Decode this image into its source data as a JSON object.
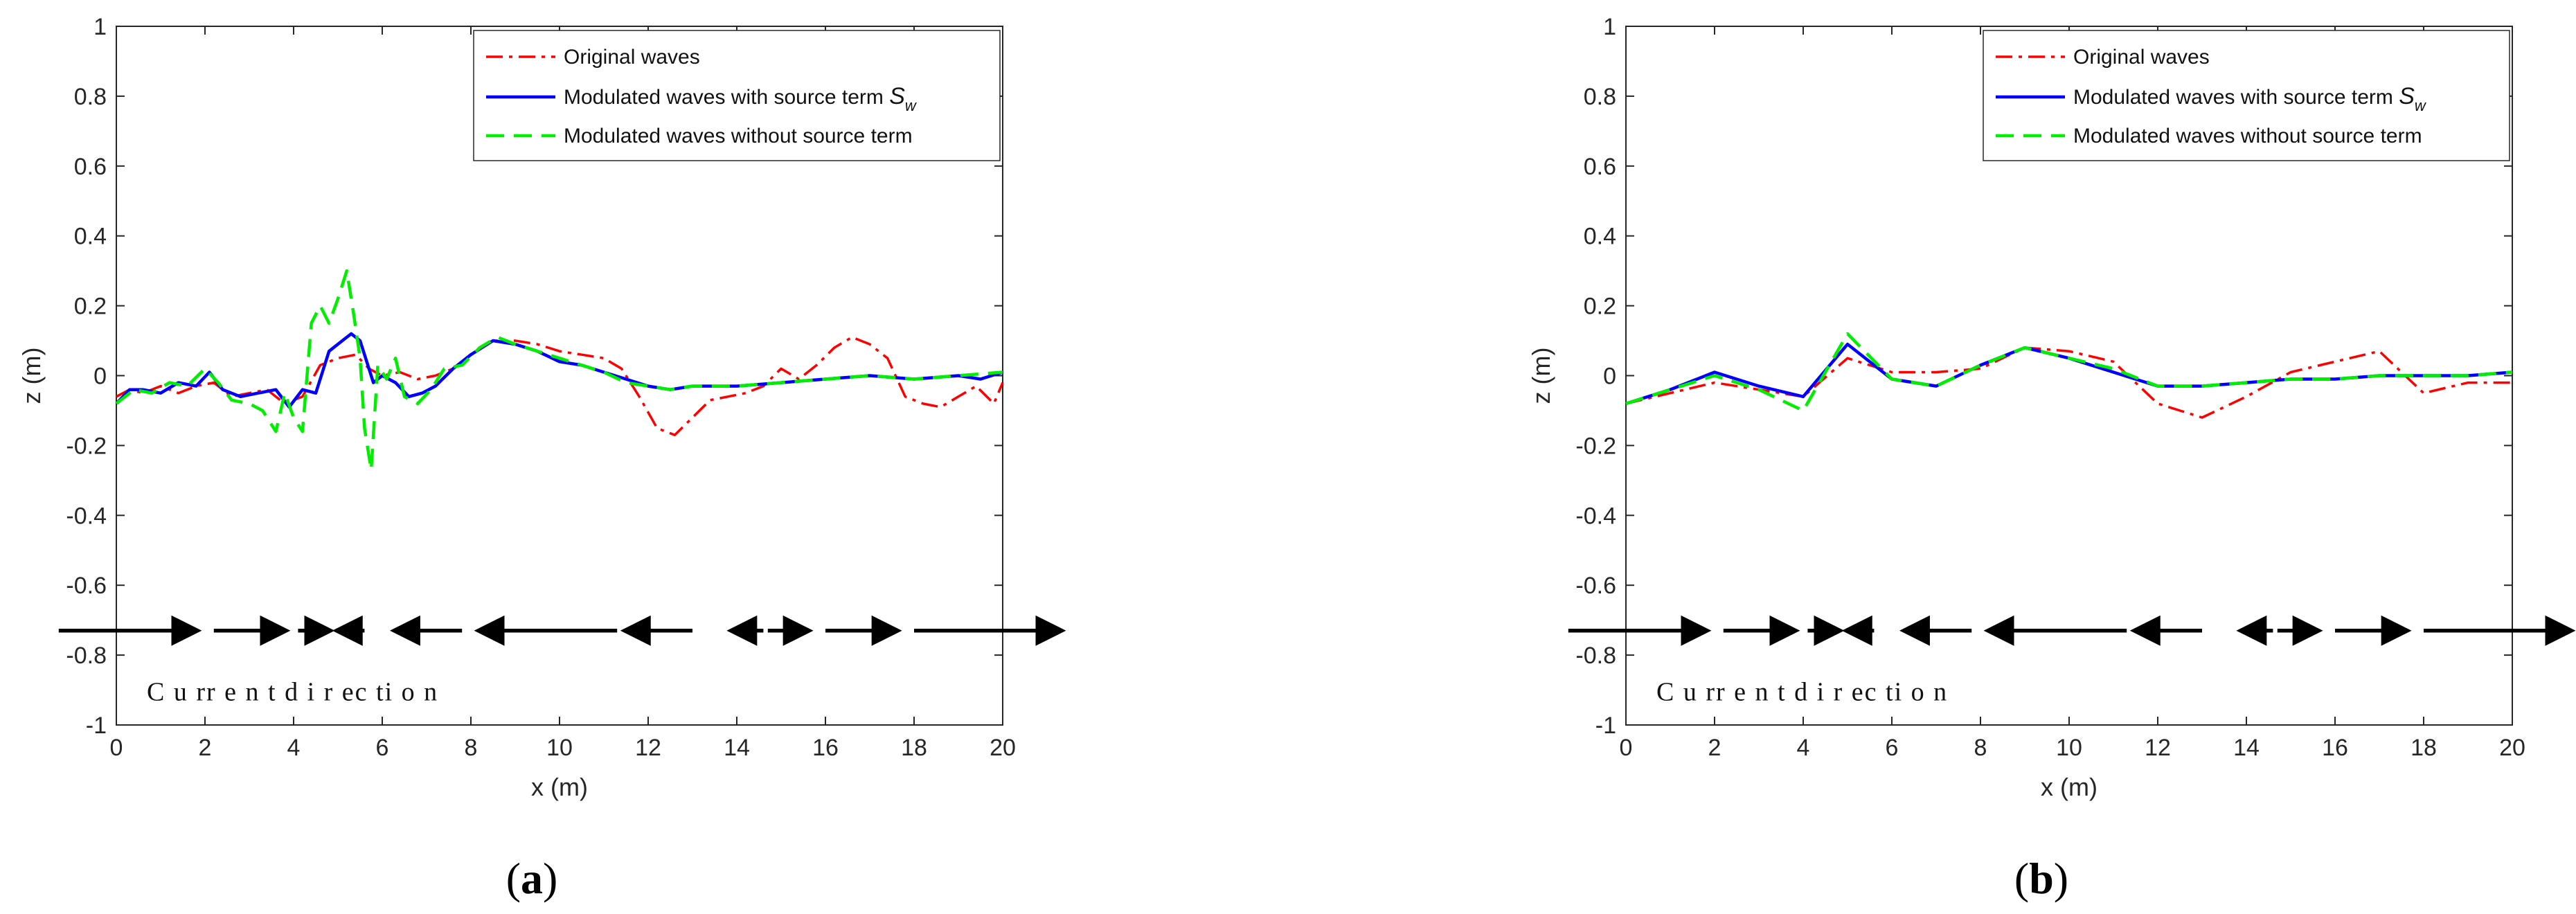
{
  "chart_data": [
    {
      "type": "line",
      "panel_label": "a",
      "xlabel": "x (m)",
      "ylabel": "z (m)",
      "xlim": [
        0,
        20
      ],
      "ylim": [
        -1,
        1
      ],
      "xticks": [
        "0",
        "2",
        "4",
        "6",
        "8",
        "10",
        "12",
        "14",
        "16",
        "18",
        "20"
      ],
      "yticks": [
        "1",
        "0.8",
        "0.6",
        "0.4",
        "0.2",
        "0",
        "-0.2",
        "-0.4",
        "-0.6",
        "-0.8",
        "-1"
      ],
      "grid": false,
      "legend_position": "top-right",
      "legend": {
        "original": "Original waves",
        "with_source_prefix": "Modulated waves with source term ",
        "with_source_symbol": "S",
        "with_source_sub": "w",
        "without_source": "Modulated waves without source term"
      },
      "series": [
        {
          "name": "Original waves",
          "color": "#ff0000",
          "style": "dash-dot",
          "x": [
            0,
            0.3,
            0.6,
            1,
            1.4,
            1.8,
            2.2,
            2.6,
            3,
            3.4,
            3.8,
            4.2,
            4.6,
            5,
            5.4,
            5.7,
            6,
            6.4,
            6.8,
            7.2,
            7.6,
            8,
            8.5,
            9,
            9.5,
            10,
            10.5,
            11,
            11.4,
            11.8,
            12.2,
            12.6,
            13,
            13.4,
            13.8,
            14.2,
            14.6,
            15,
            15.4,
            15.8,
            16.2,
            16.6,
            17,
            17.4,
            17.8,
            18.2,
            18.6,
            19,
            19.4,
            19.8,
            20
          ],
          "y": [
            -0.06,
            -0.04,
            -0.05,
            -0.03,
            -0.05,
            -0.03,
            -0.02,
            -0.06,
            -0.05,
            -0.04,
            -0.08,
            -0.06,
            0.03,
            0.05,
            0.06,
            0.02,
            0.0,
            0.01,
            -0.01,
            0.0,
            0.02,
            0.06,
            0.1,
            0.1,
            0.09,
            0.07,
            0.06,
            0.05,
            0.02,
            -0.06,
            -0.15,
            -0.17,
            -0.12,
            -0.07,
            -0.06,
            -0.05,
            -0.03,
            0.02,
            -0.01,
            0.03,
            0.08,
            0.11,
            0.09,
            0.05,
            -0.06,
            -0.08,
            -0.09,
            -0.06,
            -0.03,
            -0.08,
            -0.02
          ]
        },
        {
          "name": "Modulated waves with source term Sw",
          "color": "#0000ff",
          "style": "solid",
          "x": [
            0,
            0.3,
            0.6,
            1,
            1.4,
            1.8,
            2.1,
            2.4,
            2.8,
            3.2,
            3.6,
            3.9,
            4.2,
            4.5,
            4.8,
            5.1,
            5.3,
            5.5,
            5.8,
            6,
            6.3,
            6.6,
            6.9,
            7.2,
            7.6,
            8,
            8.5,
            9,
            9.5,
            10,
            10.5,
            11,
            11.5,
            12,
            12.5,
            13,
            14,
            15,
            16,
            17,
            18,
            19,
            19.5,
            20
          ],
          "y": [
            -0.08,
            -0.04,
            -0.04,
            -0.05,
            -0.02,
            -0.03,
            0.01,
            -0.04,
            -0.06,
            -0.05,
            -0.04,
            -0.09,
            -0.04,
            -0.05,
            0.07,
            0.1,
            0.12,
            0.1,
            -0.02,
            0.0,
            -0.02,
            -0.06,
            -0.05,
            -0.03,
            0.02,
            0.06,
            0.1,
            0.09,
            0.07,
            0.04,
            0.03,
            0.01,
            -0.01,
            -0.03,
            -0.04,
            -0.03,
            -0.03,
            -0.02,
            -0.01,
            0.0,
            -0.01,
            0.0,
            -0.01,
            0.01
          ]
        },
        {
          "name": "Modulated waves without source term",
          "color": "#00ee00",
          "style": "dashed",
          "x": [
            0,
            0.4,
            0.8,
            1.2,
            1.6,
            2.0,
            2.3,
            2.6,
            3.0,
            3.3,
            3.6,
            3.8,
            4.0,
            4.2,
            4.4,
            4.6,
            4.8,
            5.0,
            5.2,
            5.35,
            5.5,
            5.6,
            5.75,
            5.9,
            6.1,
            6.3,
            6.5,
            6.8,
            7.1,
            7.4,
            7.8,
            8.2,
            8.6,
            9,
            9.5,
            10,
            10.5,
            11,
            11.5,
            12,
            12.5,
            13,
            14,
            15,
            16,
            17,
            18,
            19,
            20
          ],
          "y": [
            -0.08,
            -0.04,
            -0.05,
            -0.02,
            -0.03,
            0.02,
            -0.02,
            -0.07,
            -0.08,
            -0.1,
            -0.16,
            -0.05,
            -0.12,
            -0.16,
            0.15,
            0.2,
            0.15,
            0.22,
            0.3,
            0.18,
            0.05,
            -0.15,
            -0.27,
            0.03,
            -0.01,
            0.05,
            -0.06,
            -0.08,
            -0.04,
            0.02,
            0.03,
            0.08,
            0.11,
            0.09,
            0.07,
            0.05,
            0.03,
            0.01,
            -0.02,
            -0.03,
            -0.04,
            -0.03,
            -0.03,
            -0.02,
            -0.01,
            0.0,
            -0.01,
            0.0,
            0.01
          ]
        }
      ],
      "current_arrows": [
        [
          -1.3,
          1.8
        ],
        [
          2.2,
          3.8
        ],
        [
          4.1,
          4.8
        ],
        [
          5.6,
          5.0
        ],
        [
          7.8,
          6.3
        ],
        [
          11.3,
          8.2
        ],
        [
          13.0,
          11.5
        ],
        [
          14.6,
          13.9
        ],
        [
          14.7,
          15.6
        ],
        [
          16.0,
          17.6
        ],
        [
          18.0,
          21.3
        ]
      ],
      "current_label": "C u rr e n t d i r ec ti o n"
    },
    {
      "type": "line",
      "panel_label": "b",
      "xlabel": "x (m)",
      "ylabel": "z (m)",
      "xlim": [
        0,
        20
      ],
      "ylim": [
        -1,
        1
      ],
      "xticks": [
        "0",
        "2",
        "4",
        "6",
        "8",
        "10",
        "12",
        "14",
        "16",
        "18",
        "20"
      ],
      "yticks": [
        "1",
        "0.8",
        "0.6",
        "0.4",
        "0.2",
        "0",
        "-0.2",
        "-0.4",
        "-0.6",
        "-0.8",
        "-1"
      ],
      "grid": false,
      "legend_position": "top-right",
      "legend": {
        "original": "Original waves",
        "with_source_prefix": "Modulated waves with source term ",
        "with_source_symbol": "S",
        "with_source_sub": "w",
        "without_source": "Modulated waves without source term"
      },
      "series": [
        {
          "name": "Original waves",
          "color": "#ff0000",
          "style": "dash-dot",
          "x": [
            0,
            1,
            2,
            3,
            4,
            5,
            6,
            7,
            8,
            9,
            10,
            11,
            12,
            13,
            14,
            15,
            16,
            17,
            18,
            19,
            20
          ],
          "y": [
            -0.08,
            -0.05,
            -0.02,
            -0.04,
            -0.06,
            0.05,
            0.01,
            0.01,
            0.02,
            0.08,
            0.07,
            0.04,
            -0.08,
            -0.12,
            -0.06,
            0.01,
            0.04,
            0.07,
            -0.05,
            -0.02,
            -0.02
          ]
        },
        {
          "name": "Modulated waves with source term Sw",
          "color": "#0000ff",
          "style": "solid",
          "x": [
            0,
            1,
            2,
            3,
            4,
            5,
            6,
            7,
            8,
            9,
            10,
            11,
            12,
            13,
            14,
            15,
            16,
            17,
            18,
            19,
            20
          ],
          "y": [
            -0.08,
            -0.04,
            0.01,
            -0.03,
            -0.06,
            0.09,
            -0.01,
            -0.03,
            0.03,
            0.08,
            0.05,
            0.01,
            -0.03,
            -0.03,
            -0.02,
            -0.01,
            -0.01,
            0.0,
            0.0,
            0.0,
            0.01
          ]
        },
        {
          "name": "Modulated waves without source term",
          "color": "#00ee00",
          "style": "dashed",
          "x": [
            0,
            1,
            2,
            3,
            4,
            5,
            6,
            7,
            8,
            9,
            10,
            11,
            12,
            13,
            14,
            15,
            16,
            17,
            18,
            19,
            20
          ],
          "y": [
            -0.08,
            -0.04,
            0.0,
            -0.04,
            -0.1,
            0.12,
            -0.01,
            -0.03,
            0.03,
            0.08,
            0.05,
            0.02,
            -0.03,
            -0.03,
            -0.02,
            -0.01,
            -0.01,
            0.0,
            0.0,
            0.0,
            0.01
          ]
        }
      ],
      "current_arrows": [
        [
          -1.3,
          1.8
        ],
        [
          2.2,
          3.8
        ],
        [
          4.1,
          4.8
        ],
        [
          5.6,
          5.0
        ],
        [
          7.8,
          6.3
        ],
        [
          11.3,
          8.2
        ],
        [
          13.0,
          11.5
        ],
        [
          14.6,
          13.9
        ],
        [
          14.7,
          15.6
        ],
        [
          16.0,
          17.6
        ],
        [
          18.0,
          21.3
        ]
      ],
      "current_label": "C u rr e n t d i r ec ti o n"
    }
  ]
}
